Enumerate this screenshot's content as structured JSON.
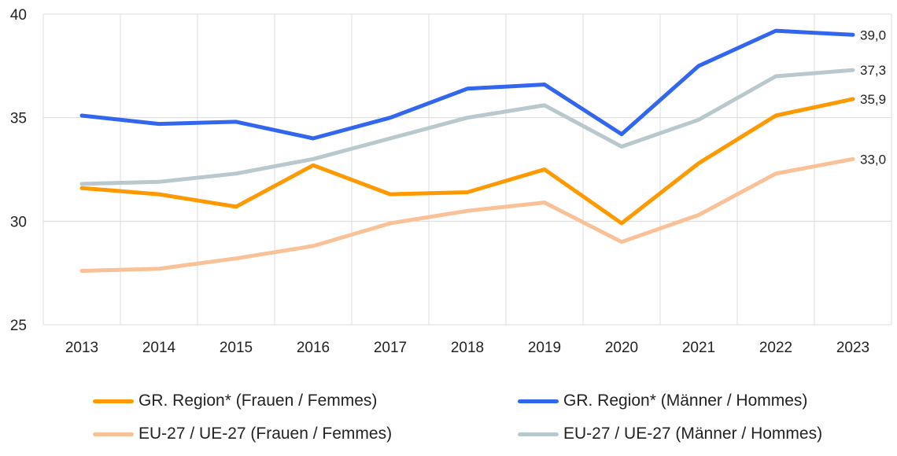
{
  "chart_data": {
    "type": "line",
    "title": "",
    "xlabel": "",
    "ylabel": "",
    "ylim": [
      25,
      40
    ],
    "yticks": [
      25,
      30,
      35,
      40
    ],
    "x": [
      "2013",
      "2014",
      "2015",
      "2016",
      "2017",
      "2018",
      "2019",
      "2020",
      "2021",
      "2022",
      "2023"
    ],
    "grid": true,
    "legend_position": "bottom",
    "series": [
      {
        "name": "GR. Region* (Frauen / Femmes)",
        "color": "#ff9900",
        "values": [
          31.6,
          31.3,
          30.7,
          32.7,
          31.3,
          31.4,
          32.5,
          29.9,
          32.8,
          35.1,
          35.9
        ],
        "end_label": "35,9"
      },
      {
        "name": "GR. Region* (Männer / Hommes)",
        "color": "#3366ee",
        "values": [
          35.1,
          34.7,
          34.8,
          34.0,
          35.0,
          36.4,
          36.6,
          34.2,
          37.5,
          39.2,
          39.0
        ],
        "end_label": "39,0"
      },
      {
        "name": "EU-27 / UE-27 (Frauen / Femmes)",
        "color": "#f9c197",
        "values": [
          27.6,
          27.7,
          28.2,
          28.8,
          29.9,
          30.5,
          30.9,
          29.0,
          30.3,
          32.3,
          33.0
        ],
        "end_label": "33,0"
      },
      {
        "name": "EU-27 / UE-27 (Männer / Hommes)",
        "color": "#b9c8cc",
        "values": [
          31.8,
          31.9,
          32.3,
          33.0,
          34.0,
          35.0,
          35.6,
          33.6,
          34.9,
          37.0,
          37.3
        ],
        "end_label": "37,3"
      }
    ]
  }
}
